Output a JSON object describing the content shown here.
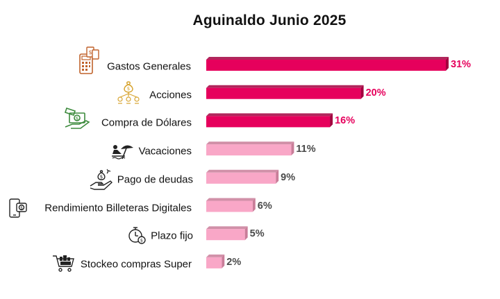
{
  "chart_data": {
    "type": "bar",
    "orientation": "horizontal",
    "title": "Aguinaldo Junio 2025",
    "categories": [
      "Gastos Generales",
      "Acciones",
      "Compra de Dólares",
      "Vacaciones",
      "Pago de deudas",
      "Rendimiento Billeteras Digitales",
      "Plazo fijo",
      "Stockeo compras Super"
    ],
    "values": [
      31,
      20,
      16,
      11,
      9,
      6,
      5,
      2
    ],
    "value_labels": [
      "31%",
      "20%",
      "16%",
      "11%",
      "9%",
      "6%",
      "5%",
      "2%"
    ],
    "icons": [
      "calculator-money-icon",
      "money-bag-network-icon",
      "dollar-bill-hand-icon",
      "beach-umbrella-icon",
      "hand-money-bag-icon",
      "phone-wallet-icon",
      "stopwatch-money-icon",
      "shopping-cart-icon"
    ],
    "highlight_count": 3,
    "colors": {
      "highlight": "#e6005c",
      "highlight_dark": "#a3003f",
      "normal": "#f9a7c7",
      "normal_dark": "#c97d99",
      "highlight_label": "#e6005c",
      "normal_label": "#4a4a4a"
    },
    "xlim": [
      0,
      31
    ],
    "grid": false,
    "legend": "none"
  }
}
